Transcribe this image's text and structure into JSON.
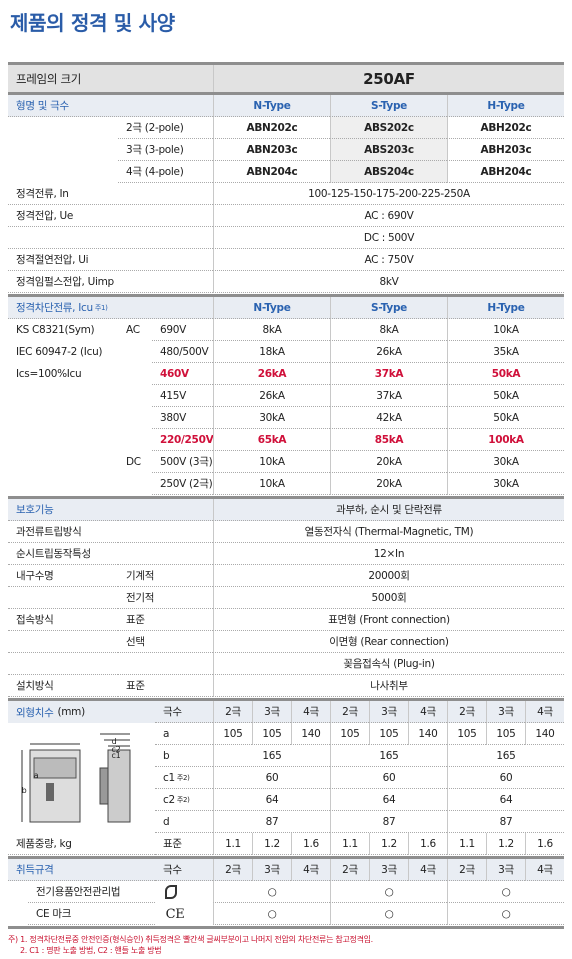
{
  "title": "제품의 정격 및 사양",
  "frame": {
    "label": "프레임의 크기",
    "value": "250AF"
  },
  "model": {
    "label": "형명 및 극수",
    "types": [
      "N-Type",
      "S-Type",
      "H-Type"
    ],
    "rows": [
      {
        "poles": "2극 (2-pole)",
        "models": [
          "ABN202c",
          "ABS202c",
          "ABH202c"
        ]
      },
      {
        "poles": "3극 (3-pole)",
        "models": [
          "ABN203c",
          "ABS203c",
          "ABH203c"
        ]
      },
      {
        "poles": "4극 (4-pole)",
        "models": [
          "ABN204c",
          "ABS204c",
          "ABH204c"
        ]
      }
    ]
  },
  "ratings": [
    {
      "label": "정격전류, In",
      "values": [
        "100-125-150-175-200-225-250A"
      ]
    },
    {
      "label": "정격전압, Ue",
      "values": [
        "AC : 690V",
        "DC : 500V"
      ]
    },
    {
      "label": "정격절연전압, Ui",
      "values": [
        "AC : 750V"
      ]
    },
    {
      "label": "정격임펄스전압, Uimp",
      "values": [
        "8kV"
      ]
    }
  ],
  "breaking": {
    "label": "정격차단전류, Icu",
    "note": "주1)",
    "types": [
      "N-Type",
      "S-Type",
      "H-Type"
    ],
    "standards": [
      "KS C8321(Sym)",
      "IEC 60947-2 (Icu)",
      "Ics=100%Icu"
    ],
    "groups": [
      {
        "name": "AC",
        "rows": [
          {
            "voltage": "690V",
            "values": [
              "8kA",
              "8kA",
              "10kA"
            ]
          },
          {
            "voltage": "480/500V",
            "values": [
              "18kA",
              "26kA",
              "35kA"
            ]
          },
          {
            "voltage": "460V",
            "values": [
              "26kA",
              "37kA",
              "50kA"
            ],
            "color": "#d0103a"
          },
          {
            "voltage": "415V",
            "values": [
              "26kA",
              "37kA",
              "50kA"
            ]
          },
          {
            "voltage": "380V",
            "values": [
              "30kA",
              "42kA",
              "50kA"
            ]
          },
          {
            "voltage": "220/250V",
            "values": [
              "65kA",
              "85kA",
              "100kA"
            ],
            "color": "#d0103a"
          }
        ]
      },
      {
        "name": "DC",
        "rows": [
          {
            "voltage": "500V (3극)",
            "values": [
              "10kA",
              "20kA",
              "30kA"
            ]
          },
          {
            "voltage": "250V (2극)",
            "values": [
              "10kA",
              "20kA",
              "30kA"
            ]
          }
        ]
      }
    ]
  },
  "features": [
    {
      "label": "보호기능",
      "rows": [
        {
          "value": "과부하, 순시 및 단락전류"
        }
      ]
    },
    {
      "label": "과전류트립방식",
      "rows": [
        {
          "value": "열동전자식 (Thermal-Magnetic, TM)"
        }
      ]
    },
    {
      "label": "순시트립동작특성",
      "rows": [
        {
          "value": "12×In"
        }
      ]
    },
    {
      "label": "내구수명",
      "rows": [
        {
          "sub": "기계적",
          "value": "20000회"
        },
        {
          "sub": "전기적",
          "value": "5000회"
        }
      ]
    },
    {
      "label": "접속방식",
      "rows": [
        {
          "sub": "표준",
          "value": "표면형 (Front connection)"
        },
        {
          "sub": "선택",
          "value": "이면형 (Rear connection)"
        },
        {
          "value": "꽂음접속식 (Plug-in)"
        }
      ]
    },
    {
      "label": "설치방식",
      "rows": [
        {
          "sub": "표준",
          "value": "나사취부"
        }
      ]
    }
  ],
  "dimensions": {
    "label": "외형치수",
    "unit": "(mm)",
    "pole_label": "극수",
    "figure_labels": [
      "a",
      "b",
      "d",
      "c2",
      "c1"
    ],
    "rows": [
      {
        "name": "a"
      },
      {
        "name": "b"
      },
      {
        "name": "c1",
        "note": "주2)"
      },
      {
        "name": "c2",
        "note": "주2)"
      },
      {
        "name": "d"
      }
    ],
    "types": [
      {
        "poles": [
          "2극",
          "3극",
          "4극"
        ],
        "values": [
          [
            105,
            105,
            140
          ],
          165,
          60,
          64,
          87
        ]
      },
      {
        "poles": [
          "2극",
          "3극",
          "4극"
        ],
        "values": [
          [
            105,
            105,
            140
          ],
          165,
          60,
          64,
          87
        ]
      },
      {
        "poles": [
          "2극",
          "3극",
          "4극"
        ],
        "values": [
          [
            105,
            105,
            140
          ],
          165,
          60,
          64,
          87
        ]
      }
    ]
  },
  "weight": {
    "label": "제품중량, kg",
    "sub": "표준",
    "values": [
      [
        1.1,
        1.2,
        1.6
      ],
      [
        1.1,
        1.2,
        1.6
      ],
      [
        1.1,
        1.2,
        1.6
      ]
    ]
  },
  "certs": {
    "label": "취득규격",
    "pole_label": "극수",
    "poles": [
      [
        "2극",
        "3극",
        "4극"
      ],
      [
        "2극",
        "3극",
        "4극"
      ],
      [
        "2극",
        "3극",
        "4극"
      ]
    ],
    "rows": [
      {
        "name": "전기용품안전관리법",
        "marks": [
          "○",
          "○",
          "○"
        ]
      },
      {
        "name": "CE 마크",
        "icon": "CE",
        "marks": [
          "○",
          "○",
          "○"
        ]
      }
    ]
  },
  "footnotes": [
    "주) 1. 정격차단전류중 안전인증(형식승인) 취득정격은 빨간색 글씨부분이고 나머지 전압의 차단전류는 참고정격임.",
    "2. C1 : 명판 노출 방법, C2 : 핸들 노출 방법"
  ]
}
